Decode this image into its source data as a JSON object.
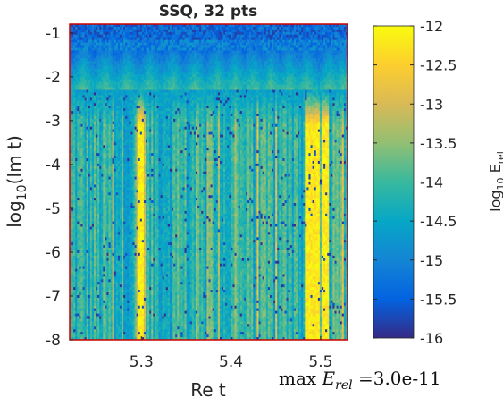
{
  "chart_data": {
    "type": "heatmap",
    "title": "SSQ, 32 pts",
    "xlabel": "Re t",
    "ylabel": {
      "main": "log",
      "sub": "10",
      "rest": "(Im t)"
    },
    "xlim": [
      5.22,
      5.53
    ],
    "ylim": [
      -8,
      -0.8
    ],
    "xticks": [
      5.3,
      5.4,
      5.5
    ],
    "xtick_labels": [
      "5.3",
      "5.4",
      "5.5"
    ],
    "yticks": [
      -1,
      -2,
      -3,
      -4,
      -5,
      -6,
      -7,
      -8
    ],
    "ytick_labels": [
      "-1",
      "-2",
      "-3",
      "-4",
      "-5",
      "-6",
      "-7",
      "-8"
    ],
    "colorbar": {
      "label": {
        "main": "log",
        "sub1": "10",
        "mid": " E",
        "sub2": "rel"
      },
      "clim": [
        -16,
        -12
      ],
      "ticks": [
        -12,
        -12.5,
        -13,
        -13.5,
        -14,
        -14.5,
        -15,
        -15.5,
        -16
      ],
      "tick_labels": [
        "-12",
        "-12.5",
        "-13",
        "-13.5",
        "-14",
        "-14.5",
        "-15",
        "-15.5",
        "-16"
      ],
      "colormap": "parula"
    },
    "field_description": {
      "quantity": "log10 relative error",
      "typical_value_low_imag": -14.2,
      "value_near_real_axis_max": -12.3,
      "value_far_from_real_axis": -15.4,
      "band_edges_im_log10": [
        -1.4,
        -2.3
      ],
      "bright_stripe_x": [
        5.3,
        5.487,
        5.495,
        5.505
      ],
      "cell_columns": 150,
      "cell_rows": 120
    },
    "annotation": {
      "prefix": "max ",
      "var": "E",
      "sub": "rel",
      "value": " =3.0e-11"
    },
    "frame_color": "#cc0000"
  }
}
